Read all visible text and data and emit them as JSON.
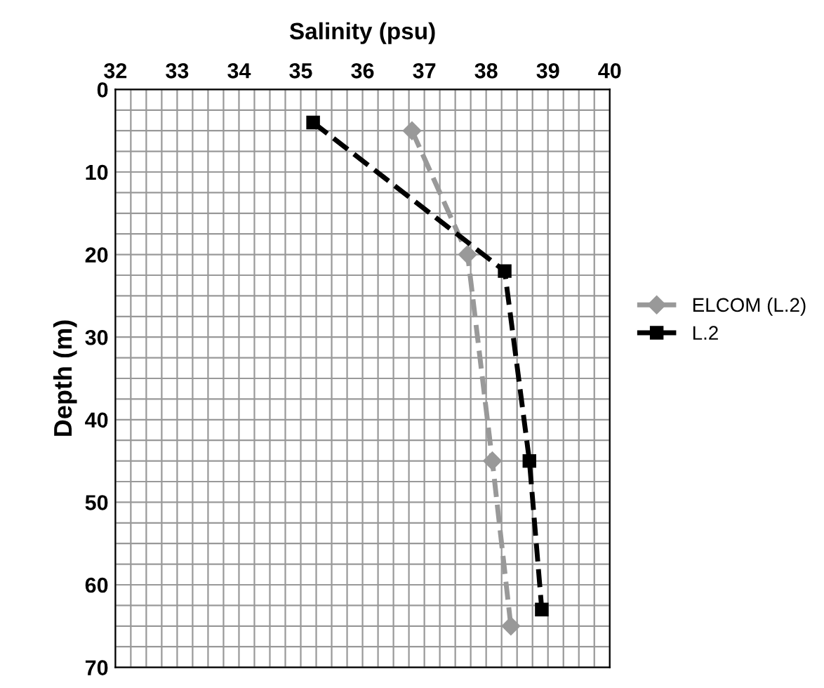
{
  "chart_data": {
    "type": "line",
    "xlabel": "Salinity (psu)",
    "ylabel": "Depth (m)",
    "xlim": [
      32,
      40
    ],
    "xticks": [
      32,
      33,
      34,
      35,
      36,
      37,
      38,
      39,
      40
    ],
    "ylim": [
      70,
      0
    ],
    "yticks": [
      0,
      10,
      20,
      30,
      40,
      50,
      60,
      70
    ],
    "grid": true,
    "legend": "right",
    "line_style": "dashed",
    "series": [
      {
        "name": "ELCOM (L.2)",
        "color": "#999999",
        "marker": "diamond",
        "x": [
          36.8,
          37.7,
          38.1,
          38.4
        ],
        "values": [
          5,
          20,
          45,
          65
        ]
      },
      {
        "name": "L.2",
        "color": "#000000",
        "marker": "square",
        "x": [
          35.2,
          38.3,
          38.7,
          38.9
        ],
        "values": [
          4,
          22,
          45,
          63
        ]
      }
    ]
  }
}
